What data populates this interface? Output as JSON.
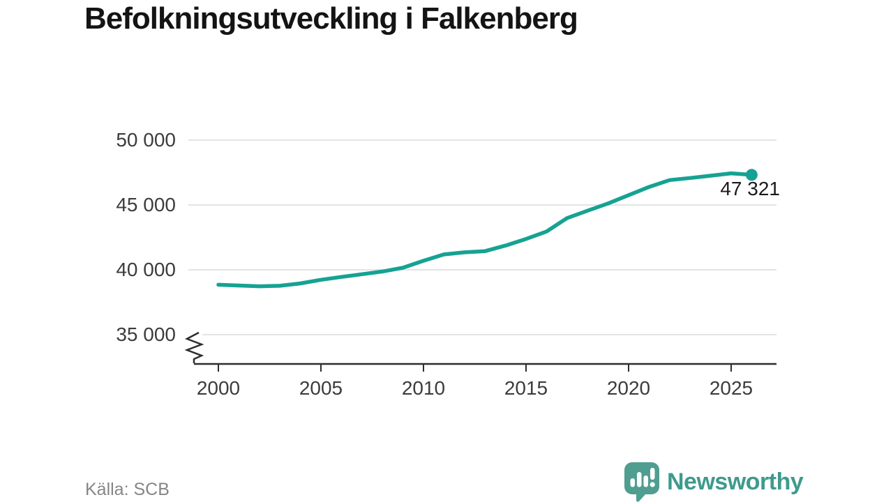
{
  "source": "Källa: SCB",
  "brand": "Newsworthy",
  "chart_data": {
    "type": "line",
    "title": "Befolkningsutveckling i Falkenberg",
    "x": [
      2000,
      2001,
      2002,
      2003,
      2004,
      2005,
      2006,
      2007,
      2008,
      2009,
      2010,
      2011,
      2012,
      2013,
      2014,
      2015,
      2016,
      2017,
      2018,
      2019,
      2020,
      2021,
      2022,
      2023,
      2024,
      2025,
      2026
    ],
    "values": [
      38850,
      38790,
      38730,
      38770,
      38950,
      39230,
      39450,
      39660,
      39870,
      40160,
      40700,
      41190,
      41350,
      41440,
      41870,
      42380,
      42950,
      43990,
      44560,
      45120,
      45760,
      46390,
      46920,
      47080,
      47260,
      47440,
      47321
    ],
    "latest_value": 47321,
    "latest_label": "47 321",
    "yticks": [
      {
        "value": 35000,
        "label": "35 000"
      },
      {
        "value": 40000,
        "label": "40 000"
      },
      {
        "value": 45000,
        "label": "45 000"
      },
      {
        "value": 50000,
        "label": "50 000"
      }
    ],
    "xticks": [
      2000,
      2005,
      2010,
      2015,
      2020,
      2025
    ],
    "ylim": [
      35000,
      50000
    ],
    "axis_break": true,
    "grid": true,
    "legend_position": "none",
    "line_color": "#16a293",
    "grid_color": "#e4e4e4",
    "axis_color": "#2d2d2d",
    "logo_color": "#4f9e90"
  }
}
